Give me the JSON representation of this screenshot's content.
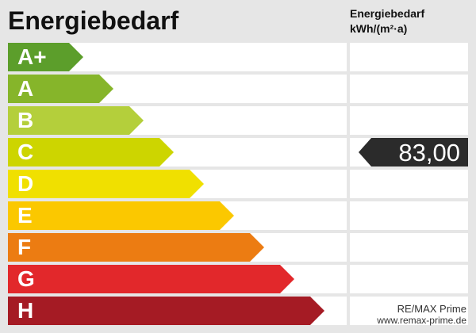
{
  "title": "Energiebedarf",
  "column_header": {
    "line1": "Energiebedarf",
    "line2": "kWh/(m²·a)"
  },
  "classes": [
    {
      "label": "A+",
      "color": "#5c9e2b"
    },
    {
      "label": "A",
      "color": "#86b52a"
    },
    {
      "label": "B",
      "color": "#b4cf3b"
    },
    {
      "label": "C",
      "color": "#cdd500"
    },
    {
      "label": "D",
      "color": "#f0e000"
    },
    {
      "label": "E",
      "color": "#fbc800"
    },
    {
      "label": "F",
      "color": "#ec7c12"
    },
    {
      "label": "G",
      "color": "#e2282b"
    },
    {
      "label": "H",
      "color": "#a51b24"
    }
  ],
  "value": {
    "text": "83,00",
    "class": "C",
    "color": "#2b2b2b"
  },
  "branding": {
    "name": "RE/MAX Prime",
    "url": "www.remax-prime.de"
  }
}
